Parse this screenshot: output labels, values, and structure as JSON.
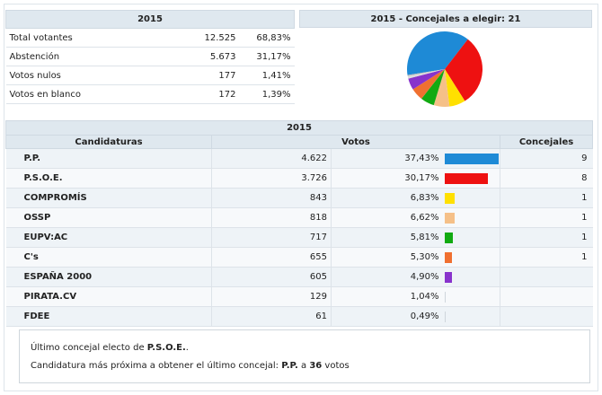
{
  "summary": {
    "year": "2015",
    "rows": [
      {
        "label": "Total votantes",
        "count": "12.525",
        "pct": "68,83%"
      },
      {
        "label": "Abstención",
        "count": "5.673",
        "pct": "31,17%"
      },
      {
        "label": "Votos nulos",
        "count": "177",
        "pct": "1,41%"
      },
      {
        "label": "Votos en blanco",
        "count": "172",
        "pct": "1,39%"
      }
    ]
  },
  "pie": {
    "title": "2015 - Concejales a elegir: 21"
  },
  "chart_data": {
    "type": "pie",
    "title": "2015 - Concejales a elegir: 21",
    "labels": [
      "P.P.",
      "P.S.O.E.",
      "COMPROMÍS",
      "OSSP",
      "EUPV:AC",
      "C's",
      "ESPAÑA 2000",
      "PIRATA.CV",
      "FDEE"
    ],
    "values": [
      37.43,
      30.17,
      6.83,
      6.62,
      5.81,
      5.3,
      4.9,
      1.04,
      0.49
    ],
    "colors": [
      "#1e8ad6",
      "#ee1111",
      "#ffe000",
      "#f5c088",
      "#11aa11",
      "#f07030",
      "#8833cc",
      "#dddddd",
      "#bbbbbb"
    ]
  },
  "results": {
    "year": "2015",
    "headers": {
      "party": "Candidaturas",
      "votes": "Votos",
      "seats": "Concejales"
    },
    "rows": [
      {
        "party": "P.P.",
        "votes": "4.622",
        "pct": "37,43%",
        "share": 37.43,
        "seats": "9",
        "color": "#1e8ad6"
      },
      {
        "party": "P.S.O.E.",
        "votes": "3.726",
        "pct": "30,17%",
        "share": 30.17,
        "seats": "8",
        "color": "#ee1111"
      },
      {
        "party": "COMPROMÍS",
        "votes": "843",
        "pct": "6,83%",
        "share": 6.83,
        "seats": "1",
        "color": "#ffe000"
      },
      {
        "party": "OSSP",
        "votes": "818",
        "pct": "6,62%",
        "share": 6.62,
        "seats": "1",
        "color": "#f5c088"
      },
      {
        "party": "EUPV:AC",
        "votes": "717",
        "pct": "5,81%",
        "share": 5.81,
        "seats": "1",
        "color": "#11aa11"
      },
      {
        "party": "C's",
        "votes": "655",
        "pct": "5,30%",
        "share": 5.3,
        "seats": "1",
        "color": "#f07030"
      },
      {
        "party": "ESPAÑA 2000",
        "votes": "605",
        "pct": "4,90%",
        "share": 4.9,
        "seats": "",
        "color": "#8833cc"
      },
      {
        "party": "PIRATA.CV",
        "votes": "129",
        "pct": "1,04%",
        "share": 1.04,
        "seats": "",
        "color": "#dddddd"
      },
      {
        "party": "FDEE",
        "votes": "61",
        "pct": "0,49%",
        "share": 0.49,
        "seats": "",
        "color": "#bbbbbb"
      }
    ]
  },
  "note": {
    "line1_prefix": "Último concejal electo de ",
    "line1_party": "P.S.O.E.",
    "line1_suffix": ".",
    "line2_prefix": "Candidatura más próxima a obtener el último concejal: ",
    "line2_party": "P.P.",
    "line2_mid": " a ",
    "line2_votes": "36",
    "line2_suffix": " votos"
  }
}
